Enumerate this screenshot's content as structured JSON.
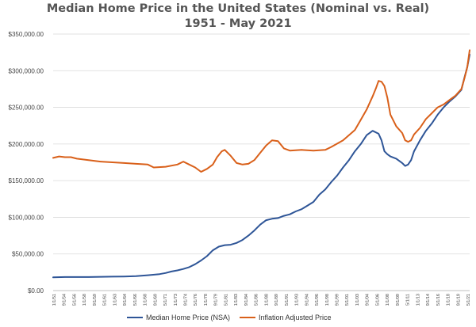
{
  "chart_data": {
    "type": "line",
    "title": "Median Home Price in the United States (Nominal vs. Real)",
    "subtitle": "1951 - May 2021",
    "xlabel": "",
    "ylabel": "",
    "ylim": [
      0,
      350000
    ],
    "xlim": [
      1951.0,
      2021.4
    ],
    "grid": true,
    "legend_position": "bottom",
    "y_ticks": [
      0,
      50000,
      100000,
      150000,
      200000,
      250000,
      300000,
      350000
    ],
    "y_tick_labels": [
      "$0.00",
      "$50,000.00",
      "$100,000.00",
      "$150,000.00",
      "$200,000.00",
      "$250,000.00",
      "$300,000.00",
      "$350,000.00"
    ],
    "x_tick_labels": [
      "1/1/51",
      "9/1/54",
      "5/1/56",
      "1/1/58",
      "9/1/59",
      "5/1/61",
      "1/1/63",
      "9/1/64",
      "5/1/66",
      "1/1/68",
      "9/1/69",
      "5/1/71",
      "1/1/73",
      "9/1/74",
      "5/1/76",
      "1/1/78",
      "9/1/79",
      "5/1/81",
      "1/1/83",
      "9/1/84",
      "5/1/86",
      "1/1/88",
      "9/1/89",
      "5/1/91",
      "1/1/93",
      "9/1/94",
      "5/1/96",
      "1/1/98",
      "9/1/99",
      "5/1/01",
      "1/1/03",
      "9/1/04",
      "5/1/06",
      "1/1/08",
      "9/1/09",
      "5/1/11",
      "1/1/13",
      "9/1/14",
      "5/1/16",
      "1/1/18",
      "9/1/19",
      "5/1/21"
    ],
    "series": [
      {
        "name": "Median Home Price (NSA)",
        "color": "#2e5597",
        "x": [
          1951,
          1953,
          1955,
          1957,
          1959,
          1961,
          1963,
          1965,
          1967,
          1969,
          1970,
          1971,
          1972,
          1973,
          1974,
          1975,
          1976,
          1977,
          1978,
          1979,
          1980,
          1981,
          1982,
          1983,
          1984,
          1985,
          1986,
          1987,
          1988,
          1989,
          1990,
          1991,
          1992,
          1993,
          1994,
          1995,
          1996,
          1997,
          1998,
          1999,
          2000,
          2001,
          2002,
          2003,
          2004,
          2005,
          2006,
          2006.5,
          2007,
          2007.5,
          2008,
          2009,
          2010,
          2010.5,
          2011,
          2011.5,
          2012,
          2013,
          2014,
          2015,
          2016,
          2017,
          2018,
          2019,
          2020,
          2020.5,
          2021,
          2021.4
        ],
        "y": [
          18000,
          18500,
          18500,
          18500,
          18800,
          19000,
          19200,
          19800,
          21000,
          22500,
          24000,
          26000,
          27500,
          29500,
          32000,
          36000,
          41000,
          47000,
          55000,
          60000,
          62000,
          62500,
          65000,
          69000,
          75000,
          82000,
          90000,
          96000,
          98000,
          99000,
          102000,
          104000,
          108000,
          111000,
          116000,
          121000,
          131000,
          138000,
          148000,
          157000,
          168000,
          178000,
          190000,
          200000,
          212000,
          218000,
          214000,
          205000,
          190000,
          186000,
          183000,
          180000,
          174000,
          170000,
          172000,
          178000,
          190000,
          205000,
          218000,
          228000,
          240000,
          250000,
          258000,
          265000,
          274000,
          290000,
          305000,
          322000
        ]
      },
      {
        "name": "Inflation Adjusted Price",
        "color": "#d9601a",
        "x": [
          1951,
          1952,
          1953,
          1954,
          1955,
          1957,
          1959,
          1961,
          1963,
          1965,
          1967,
          1968,
          1970,
          1972,
          1973,
          1974,
          1975,
          1976,
          1977,
          1978,
          1978.7,
          1979.5,
          1980,
          1981,
          1982,
          1983,
          1984,
          1985,
          1986,
          1987,
          1988,
          1989,
          1990,
          1991,
          1993,
          1995,
          1997,
          1998,
          2000,
          2002,
          2003,
          2004,
          2005,
          2005.6,
          2006,
          2006.5,
          2007,
          2007.5,
          2008,
          2009,
          2010,
          2010.5,
          2011,
          2011.5,
          2012,
          2013,
          2014,
          2015,
          2016,
          2017,
          2018,
          2019,
          2020,
          2020.5,
          2021,
          2021.4
        ],
        "y": [
          181000,
          183000,
          182000,
          182000,
          180000,
          178000,
          176000,
          175000,
          174000,
          173000,
          172000,
          168000,
          169000,
          172000,
          176000,
          172000,
          168000,
          162000,
          166000,
          172000,
          182000,
          190000,
          192000,
          184000,
          174000,
          172000,
          173000,
          178000,
          188000,
          198000,
          205000,
          204000,
          194000,
          191000,
          192000,
          191000,
          192000,
          196000,
          205000,
          219000,
          233000,
          247000,
          265000,
          277000,
          286000,
          285000,
          279000,
          263000,
          240000,
          224000,
          215000,
          205000,
          203000,
          205000,
          213000,
          222000,
          234000,
          242000,
          250000,
          254000,
          260000,
          266000,
          275000,
          289000,
          305000,
          328000
        ]
      }
    ]
  }
}
